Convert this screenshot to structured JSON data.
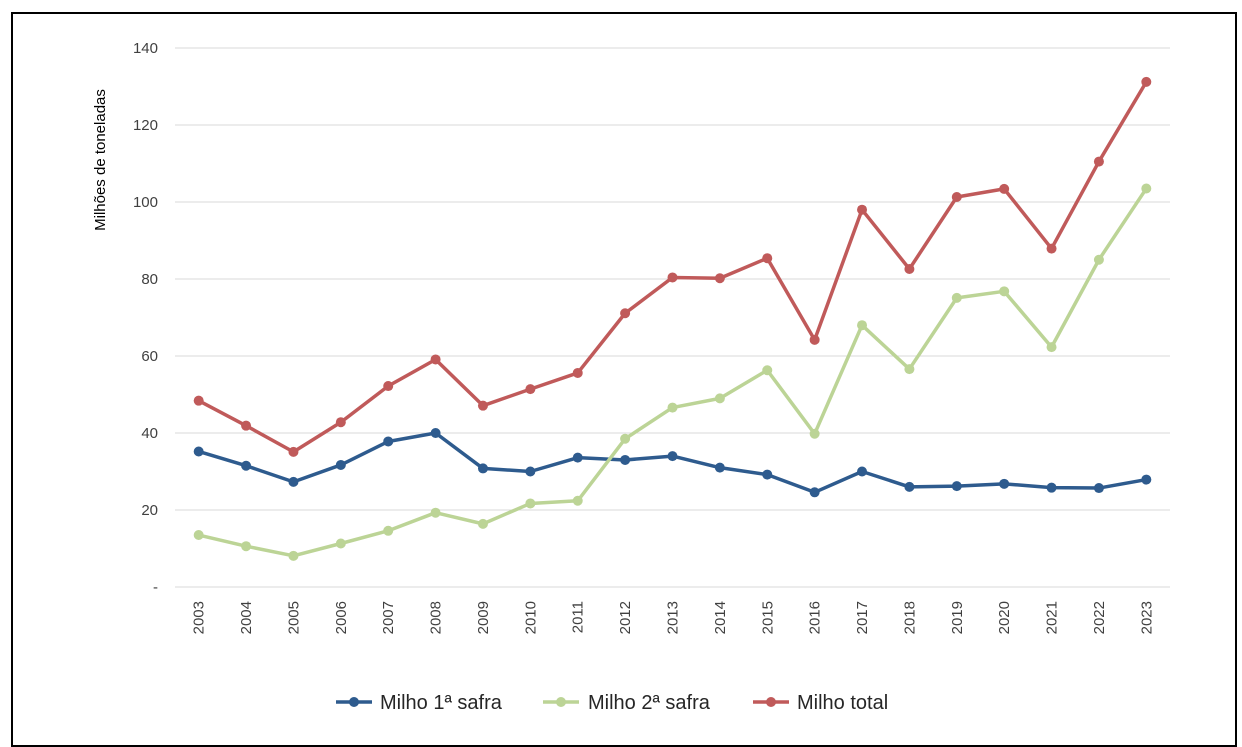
{
  "chart_data": {
    "type": "line",
    "title": "",
    "xlabel": "",
    "ylabel": "Milhões de toneladas",
    "ylim": [
      0,
      140
    ],
    "y_ticks": [
      "-",
      "20",
      "40",
      "60",
      "80",
      "100",
      "120",
      "140"
    ],
    "grid": true,
    "legend_position": "bottom",
    "categories": [
      "2003",
      "2004",
      "2005",
      "2006",
      "2007",
      "2008",
      "2009",
      "2010",
      "2011",
      "2012",
      "2013",
      "2014",
      "2015",
      "2016",
      "2017",
      "2018",
      "2019",
      "2020",
      "2021",
      "2022",
      "2023"
    ],
    "series": [
      {
        "name": "Milho 1ª safra",
        "color": "#2e5b8e",
        "values": [
          35.2,
          31.5,
          27.3,
          31.7,
          37.8,
          40.0,
          30.8,
          30.0,
          33.6,
          33.0,
          34.0,
          31.0,
          29.2,
          24.6,
          30.0,
          26.0,
          26.2,
          26.8,
          25.8,
          25.7,
          27.9
        ]
      },
      {
        "name": "Milho 2ª safra",
        "color": "#bcd496",
        "values": [
          13.5,
          10.6,
          8.1,
          11.3,
          14.6,
          19.3,
          16.4,
          21.7,
          22.4,
          38.5,
          46.6,
          49.0,
          56.3,
          39.8,
          68.0,
          56.6,
          75.1,
          76.8,
          62.3,
          85.0,
          103.5
        ]
      },
      {
        "name": "Milho total",
        "color": "#c05a5a",
        "values": [
          48.4,
          41.9,
          35.1,
          42.8,
          52.2,
          59.1,
          47.1,
          51.4,
          55.6,
          71.1,
          80.4,
          80.2,
          85.4,
          64.2,
          98.0,
          82.6,
          101.3,
          103.4,
          87.9,
          110.5,
          131.2
        ]
      }
    ]
  }
}
